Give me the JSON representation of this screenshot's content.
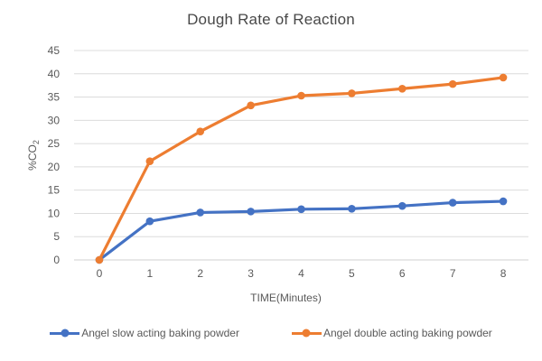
{
  "chart_data": {
    "type": "line",
    "title": "Dough Rate of Reaction",
    "x": [
      0,
      1,
      2,
      3,
      4,
      5,
      6,
      7,
      8
    ],
    "xlabel": "TIME(Minutes)",
    "ylabel": "%CO2",
    "ylim": [
      0,
      45
    ],
    "ytick_step": 5,
    "yticks": [
      0,
      5,
      10,
      15,
      20,
      25,
      30,
      35,
      40,
      45
    ],
    "grid": true,
    "legend_position": "bottom",
    "series": [
      {
        "name": "Angel slow acting baking powder",
        "color": "#4472C4",
        "values": [
          0,
          8.3,
          10.2,
          10.4,
          10.9,
          11.0,
          11.6,
          12.3,
          12.6
        ]
      },
      {
        "name": "Angel double acting baking powder",
        "color": "#ED7D31",
        "values": [
          0,
          21.2,
          27.6,
          33.2,
          35.3,
          35.8,
          36.8,
          37.8,
          39.2
        ]
      }
    ]
  },
  "y_axis_title": {
    "main": "%CO",
    "sub": "2"
  },
  "colors": {
    "text": "#595959",
    "title_text": "#484848",
    "grid": "#DCDCDC",
    "axis_line": "#D0D0D0",
    "background": "#FFFFFF"
  }
}
